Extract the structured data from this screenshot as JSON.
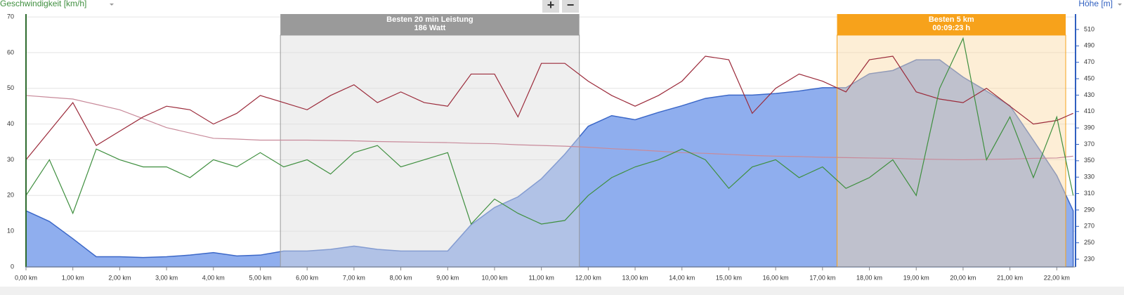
{
  "zoom_buttons": [
    "+",
    "−"
  ],
  "chart_data": {
    "type": "line",
    "y_label": "Geschwindigkeit [km/h]",
    "y2_label": "Höhe [m]",
    "x": [
      0,
      0.5,
      1,
      1.5,
      2,
      2.5,
      3,
      3.5,
      4,
      4.5,
      5,
      5.5,
      6,
      6.5,
      7,
      7.5,
      8,
      8.5,
      9,
      9.5,
      10,
      10.5,
      11,
      11.5,
      12,
      12.5,
      13,
      13.5,
      14,
      14.5,
      15,
      15.5,
      16,
      16.5,
      17,
      17.5,
      18,
      18.5,
      19,
      19.5,
      20,
      20.5,
      21,
      21.5,
      22,
      22.35
    ],
    "xlim": [
      0,
      22.4
    ],
    "xticks": [
      {
        "value": 0,
        "label": "0,00 km"
      },
      {
        "value": 1,
        "label": "1,00 km"
      },
      {
        "value": 2,
        "label": "2,00 km"
      },
      {
        "value": 3,
        "label": "3,00 km"
      },
      {
        "value": 4,
        "label": "4,00 km"
      },
      {
        "value": 5,
        "label": "5,00 km"
      },
      {
        "value": 6,
        "label": "6,00 km"
      },
      {
        "value": 7,
        "label": "7,00 km"
      },
      {
        "value": 8,
        "label": "8,00 km"
      },
      {
        "value": 9,
        "label": "9,00 km"
      },
      {
        "value": 10,
        "label": "10,00 km"
      },
      {
        "value": 11,
        "label": "11,00 km"
      },
      {
        "value": 12,
        "label": "12,00 km"
      },
      {
        "value": 13,
        "label": "13,00 km"
      },
      {
        "value": 14,
        "label": "14,00 km"
      },
      {
        "value": 15,
        "label": "15,00 km"
      },
      {
        "value": 16,
        "label": "16,00 km"
      },
      {
        "value": 17,
        "label": "17,00 km"
      },
      {
        "value": 18,
        "label": "18,00 km"
      },
      {
        "value": 19,
        "label": "19,00 km"
      },
      {
        "value": 20,
        "label": "20,00 km"
      },
      {
        "value": 21,
        "label": "21,00 km"
      },
      {
        "value": 22,
        "label": "22,00 km"
      }
    ],
    "ylim": [
      0,
      70.8
    ],
    "yticks": [
      0,
      10,
      20,
      30,
      40,
      50,
      60,
      70
    ],
    "y2lim": [
      220.6,
      528.8
    ],
    "y2ticks": [
      230,
      250,
      270,
      290,
      310,
      330,
      350,
      370,
      390,
      410,
      430,
      450,
      470,
      490,
      510
    ],
    "grid": true,
    "bands": [
      {
        "x": [
          5.43,
          11.81
        ],
        "lines": [
          "Besten 20 min Leistung",
          "186 Watt"
        ],
        "color": "#9a9a9a",
        "fill": "#dcdcdc"
      },
      {
        "x": [
          17.31,
          22.19
        ],
        "lines": [
          "Besten 5 km",
          "00:09:23 h"
        ],
        "color": "#f7a21b",
        "fill": "#fbd9a3"
      }
    ],
    "series": [
      {
        "style": "area",
        "axis": "y2",
        "color": "#3c68c8",
        "fill": "#8faeee",
        "values": [
          289,
          276,
          255,
          233,
          233,
          232,
          233,
          235,
          238,
          234,
          235,
          240,
          240,
          242,
          246,
          242,
          240,
          240,
          240,
          272,
          293,
          306,
          328,
          358,
          392,
          405,
          400,
          409,
          417,
          426,
          430,
          430,
          432,
          435,
          439,
          439,
          456,
          460,
          473,
          473,
          452,
          435,
          417,
          375,
          332,
          289
        ]
      },
      {
        "style": "line",
        "color": "#c88a9a",
        "values": [
          48,
          47.5,
          47,
          45.5,
          44,
          41.5,
          39,
          37.5,
          36,
          35.8,
          35.5,
          35.5,
          35.5,
          35.4,
          35.3,
          35.1,
          35,
          34.9,
          34.8,
          34.6,
          34.5,
          34.2,
          34,
          33.8,
          33.5,
          33.1,
          32.8,
          32.4,
          32,
          31.8,
          31.5,
          31.2,
          31,
          30.9,
          30.7,
          30.6,
          30.5,
          30.4,
          30.2,
          30.1,
          30,
          30.1,
          30.2,
          30.4,
          30.5,
          31
        ]
      },
      {
        "style": "line",
        "color": "#9b2a3a",
        "values": [
          30,
          38,
          46,
          34,
          38,
          42,
          45,
          44,
          40,
          43,
          48,
          46,
          44,
          48,
          51,
          46,
          49,
          46,
          45,
          54,
          54,
          42,
          57,
          57,
          52,
          48,
          45,
          48,
          52,
          59,
          58,
          43,
          50,
          54,
          52,
          49,
          58,
          59,
          49,
          47,
          46,
          50,
          45,
          40,
          41,
          43
        ]
      },
      {
        "style": "line",
        "color": "#3f8f3f",
        "values": [
          20,
          30,
          15,
          33,
          30,
          28,
          28,
          25,
          30,
          28,
          32,
          28,
          30,
          26,
          32,
          34,
          28,
          30,
          32,
          12,
          19,
          15,
          12,
          13,
          20,
          25,
          28,
          30,
          33,
          30,
          22,
          28,
          30,
          25,
          28,
          22,
          25,
          30,
          20,
          50,
          64,
          30,
          42,
          25,
          42,
          20
        ]
      }
    ]
  }
}
